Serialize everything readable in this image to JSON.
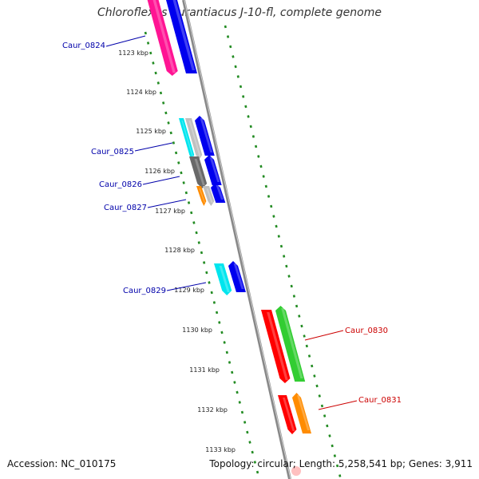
{
  "title": "Chloroflexus aurantiacus J-10-fl, complete genome",
  "footer": {
    "accession": "Accession: NC_010175",
    "summary": "Topology: circular; Length: 5,258,541 bp; Genes: 3,911"
  },
  "colors": {
    "backbone": "#888888",
    "tick": "#228B22",
    "label_blue": "#0000aa",
    "label_red": "#cc0000"
  },
  "kbp_ticks": [
    "1123 kbp",
    "1124 kbp",
    "1125 kbp",
    "1126 kbp",
    "1127 kbp",
    "1128 kbp",
    "1129 kbp",
    "1130 kbp",
    "1131 kbp",
    "1132 kbp",
    "1133 kbp"
  ],
  "gene_labels": [
    {
      "text": "Caur_0824",
      "color": "#0000aa"
    },
    {
      "text": "Caur_0825",
      "color": "#0000aa"
    },
    {
      "text": "Caur_0826",
      "color": "#0000aa"
    },
    {
      "text": "Caur_0827",
      "color": "#0000aa"
    },
    {
      "text": "Caur_0829",
      "color": "#0000aa"
    },
    {
      "text": "Caur_0830",
      "color": "#cc0000"
    },
    {
      "text": "Caur_0831",
      "color": "#cc0000"
    }
  ],
  "features": [
    {
      "kind": "cds-reverse",
      "color": "#ff1493"
    },
    {
      "kind": "cds-forward",
      "color": "#0000ee"
    },
    {
      "kind": "cds-reverse",
      "color": "#00e5ee"
    },
    {
      "kind": "cds-reverse",
      "color": "#c0c0c0"
    },
    {
      "kind": "cds-forward",
      "color": "#0000ee"
    },
    {
      "kind": "cds-reverse",
      "color": "#696969"
    },
    {
      "kind": "cds-forward",
      "color": "#0000ee"
    },
    {
      "kind": "cds-reverse",
      "color": "#ff8c00"
    },
    {
      "kind": "cds-reverse",
      "color": "#c0c0c0"
    },
    {
      "kind": "cds-forward",
      "color": "#0000ee"
    },
    {
      "kind": "cds-reverse",
      "color": "#00e5ee"
    },
    {
      "kind": "cds-forward",
      "color": "#0000ee"
    },
    {
      "kind": "cds-reverse",
      "color": "#ff0000"
    },
    {
      "kind": "cds-forward",
      "color": "#32cd32"
    },
    {
      "kind": "cds-reverse",
      "color": "#ff0000"
    },
    {
      "kind": "cds-forward",
      "color": "#ff8c00"
    }
  ]
}
